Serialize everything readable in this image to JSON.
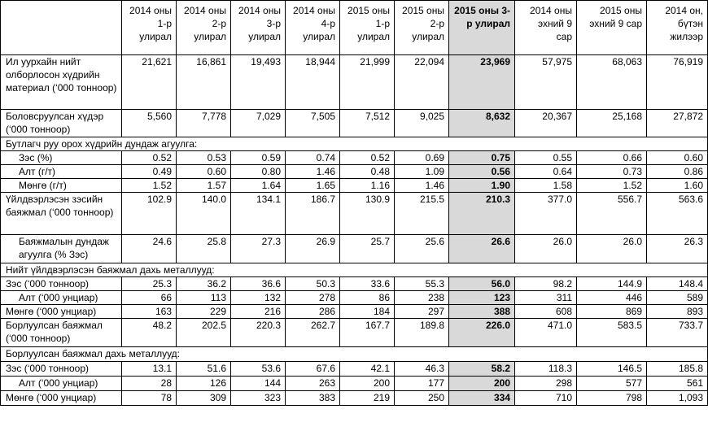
{
  "headers": [
    "",
    "2014 оны 1-р улирал",
    "2014 оны 2-р улирал",
    "2014 оны 3-р улирал",
    "2014 оны 4-р улирал",
    "2015 оны 1-р улирал",
    "2015 оны 2-р улирал",
    "2015 оны 3-р улирал",
    "2014 оны эхний 9 сар",
    "2015 оны эхний 9 сар",
    "2014 он, бүтэн жилээр"
  ],
  "highlight_column": 7,
  "rows": [
    {
      "label": "Ил уурхайн нийт олборлосон хүдрийн материал (‘000 тонноор)",
      "values": [
        "21,621",
        "16,861",
        "19,493",
        "18,944",
        "21,999",
        "22,094",
        "23,969",
        "57,975",
        "68,063",
        "76,919"
      ]
    },
    {
      "label": "Боловсруулсан хүдэр (‘000 тонноор)",
      "values": [
        "5,560",
        "7,778",
        "7,029",
        "7,505",
        "7,512",
        "9,025",
        "8,632",
        "20,367",
        "25,168",
        "27,872"
      ]
    },
    {
      "section": "Бутлагч руу орох хүдрийн дундаж агуулга:"
    },
    {
      "label": "Зэс (%)",
      "indent": true,
      "values": [
        "0.52",
        "0.53",
        "0.59",
        "0.74",
        "0.52",
        "0.69",
        "0.75",
        "0.55",
        "0.66",
        "0.60"
      ]
    },
    {
      "label": "Алт (г/т)",
      "indent": true,
      "values": [
        "0.49",
        "0.60",
        "0.80",
        "1.46",
        "0.48",
        "1.09",
        "0.56",
        "0.64",
        "0.73",
        "0.86"
      ]
    },
    {
      "label": "Мөнгө (г/т)",
      "indent": true,
      "values": [
        "1.52",
        "1.57",
        "1.64",
        "1.65",
        "1.16",
        "1.46",
        "1.90",
        "1.58",
        "1.52",
        "1.60"
      ]
    },
    {
      "label": "Үйлдвэрлэсэн зэсийн баяжмал (‘000 тонноор)",
      "values": [
        "102.9",
        "140.0",
        "134.1",
        "186.7",
        "130.9",
        "215.5",
        "210.3",
        "377.0",
        "556.7",
        "563.6"
      ]
    },
    {
      "label": "Баяжмалын дундаж агуулга (% Зэс)",
      "indent": true,
      "values": [
        "24.6",
        "25.8",
        "27.3",
        "26.9",
        "25.7",
        "25.6",
        "26.6",
        "26.0",
        "26.0",
        "26.3"
      ]
    },
    {
      "section": "Нийт үйлдвэрлэсэн баяжмал дахь металлууд:"
    },
    {
      "label": "Зэс (‘000 тонноор)",
      "values": [
        "25.3",
        "36.2",
        "36.6",
        "50.3",
        "33.6",
        "55.3",
        "56.0",
        "98.2",
        "144.9",
        "148.4"
      ]
    },
    {
      "label": "Алт (‘000 унциар)",
      "indent": true,
      "values": [
        "66",
        "113",
        "132",
        "278",
        "86",
        "238",
        "123",
        "311",
        "446",
        "589"
      ]
    },
    {
      "label": "Мөнгө (‘000 унциар)",
      "values": [
        "163",
        "229",
        "216",
        "286",
        "184",
        "297",
        "388",
        "608",
        "869",
        "893"
      ]
    },
    {
      "label": "Борлуулсан баяжмал (‘000 тонноор)",
      "values": [
        "48.2",
        "202.5",
        "220.3",
        "262.7",
        "167.7",
        "189.8",
        "226.0",
        "471.0",
        "583.5",
        "733.7"
      ]
    },
    {
      "section": "Борлуулсан баяжмал дахь металлууд:"
    },
    {
      "label": "Зэс (‘000 тонноор)",
      "values": [
        "13.1",
        "51.6",
        "53.6",
        "67.6",
        "42.1",
        "46.3",
        "58.2",
        "118.3",
        "146.5",
        "185.8"
      ]
    },
    {
      "label": "Алт (‘000 унциар)",
      "indent": true,
      "values": [
        "28",
        "126",
        "144",
        "263",
        "200",
        "177",
        "200",
        "298",
        "577",
        "561"
      ]
    },
    {
      "label": "Мөнгө (‘000 унциар)",
      "values": [
        "78",
        "309",
        "323",
        "383",
        "219",
        "250",
        "334",
        "710",
        "798",
        "1,093"
      ]
    }
  ]
}
